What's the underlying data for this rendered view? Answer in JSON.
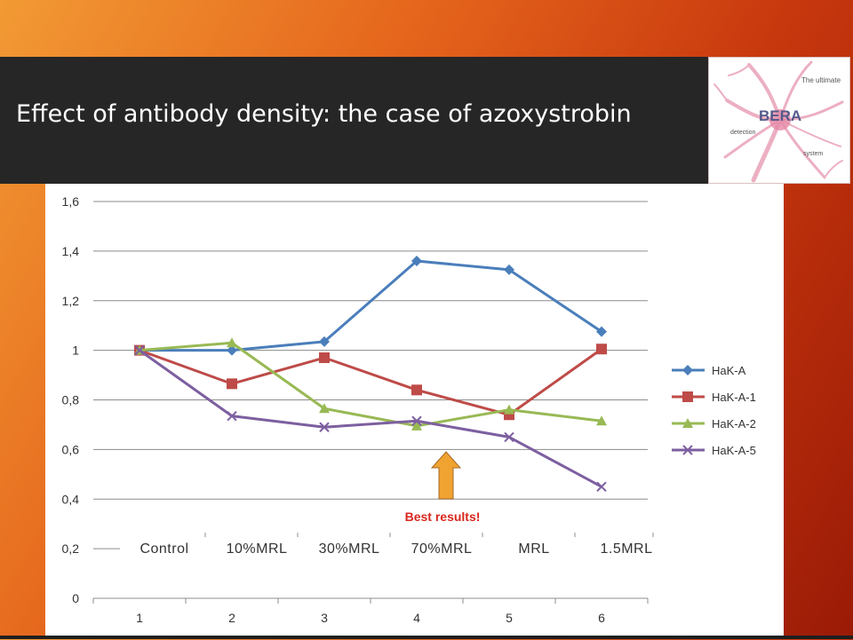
{
  "slide": {
    "title": "Effect of antibody density: the case of azoxystrobin"
  },
  "logo": {
    "name": "BERA",
    "line1": "The ultimate",
    "line2": "detection",
    "line3": "system"
  },
  "chart_data": {
    "type": "line",
    "x": [
      1,
      2,
      3,
      4,
      5,
      6
    ],
    "x_tick_labels": [
      "1",
      "2",
      "3",
      "4",
      "5",
      "6"
    ],
    "category_labels": [
      "Control",
      "10%MRL",
      "30%MRL",
      "70%MRL",
      "MRL",
      "1.5MRL"
    ],
    "ylim": [
      0,
      1.6
    ],
    "y_tick_labels": [
      "0",
      "0,2",
      "0,4",
      "0,6",
      "0,8",
      "1",
      "1,2",
      "1,4",
      "1,6"
    ],
    "grid": true,
    "legend_position": "right",
    "series": [
      {
        "name": "HaK-A",
        "color": "#4a7ebb",
        "marker": "diamond",
        "values": [
          1.0,
          1.0,
          1.035,
          1.36,
          1.325,
          1.075
        ]
      },
      {
        "name": "HaK-A-1",
        "color": "#be4b48",
        "marker": "square",
        "values": [
          1.0,
          0.865,
          0.97,
          0.84,
          0.74,
          1.005
        ]
      },
      {
        "name": "HaK-A-2",
        "color": "#98b954",
        "marker": "triangle",
        "values": [
          1.0,
          1.03,
          0.765,
          0.695,
          0.76,
          0.715
        ]
      },
      {
        "name": "HaK-A-5",
        "color": "#7d5fa0",
        "marker": "x",
        "values": [
          1.0,
          0.735,
          0.69,
          0.715,
          0.65,
          0.45
        ]
      }
    ],
    "annotation": {
      "text": "Best results!",
      "color": "#d9261c",
      "arrow_color": "#f0a330"
    }
  }
}
